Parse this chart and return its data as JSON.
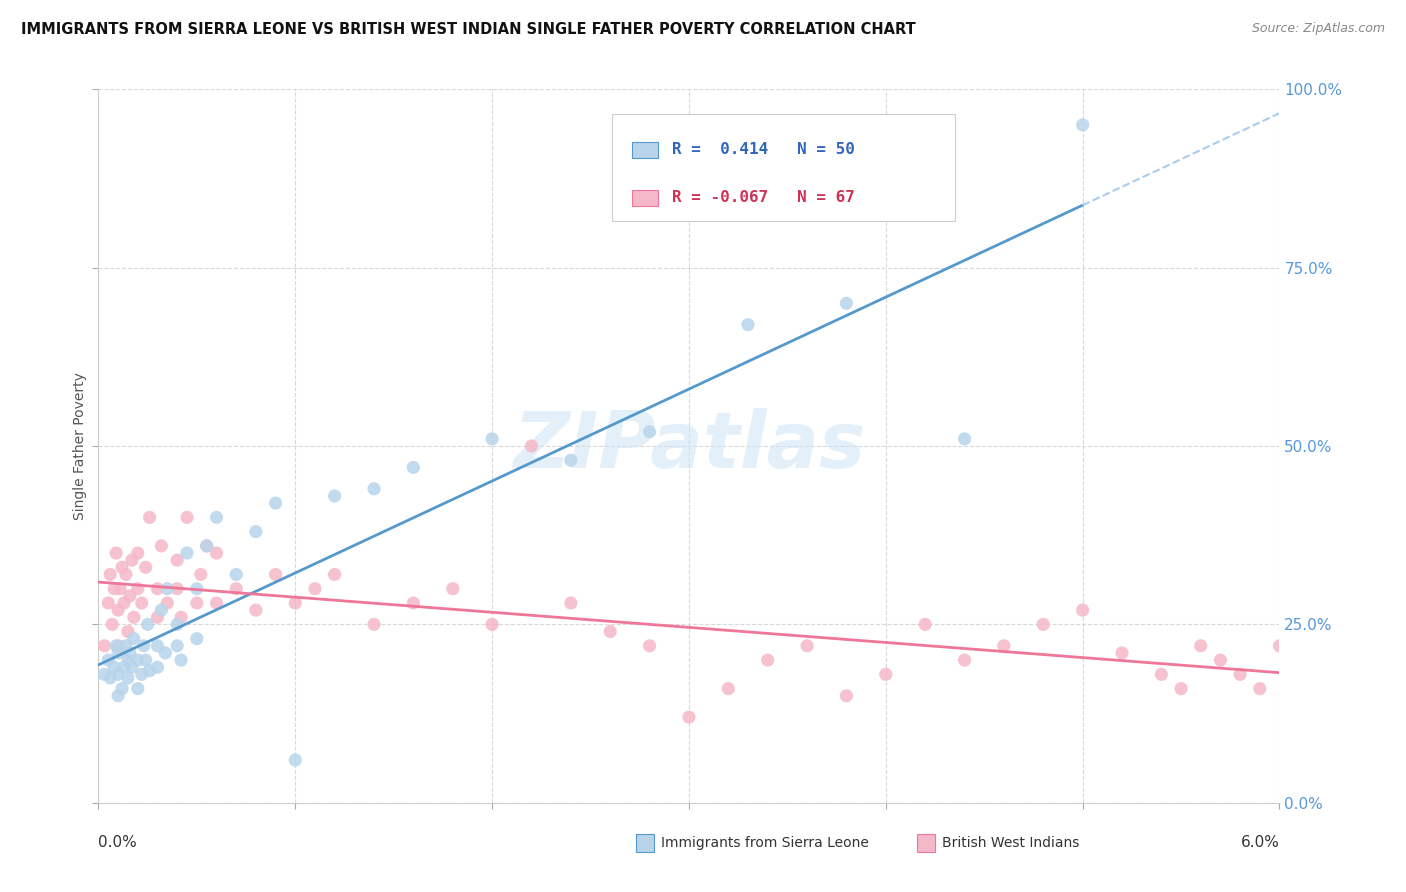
{
  "title": "IMMIGRANTS FROM SIERRA LEONE VS BRITISH WEST INDIAN SINGLE FATHER POVERTY CORRELATION CHART",
  "source": "Source: ZipAtlas.com",
  "ylabel": "Single Father Poverty",
  "xmin": 0.0,
  "xmax": 0.06,
  "ymin": 0.0,
  "ymax": 1.0,
  "R1": 0.414,
  "N1": 50,
  "R2": -0.067,
  "N2": 67,
  "color_sierra": "#b8d4ea",
  "color_bwi": "#f5b8c8",
  "color_line1": "#5599cc",
  "color_line2": "#ee7799",
  "color_line1_dashed": "#aaccee",
  "legend_label1": "Immigrants from Sierra Leone",
  "legend_label2": "British West Indians",
  "sierra_leone_x": [
    0.0003,
    0.0005,
    0.0006,
    0.0008,
    0.0009,
    0.001,
    0.001,
    0.001,
    0.0012,
    0.0013,
    0.0014,
    0.0015,
    0.0015,
    0.0016,
    0.0017,
    0.0018,
    0.002,
    0.002,
    0.0022,
    0.0023,
    0.0024,
    0.0025,
    0.0026,
    0.003,
    0.003,
    0.0032,
    0.0034,
    0.0035,
    0.004,
    0.004,
    0.0042,
    0.0045,
    0.005,
    0.005,
    0.0055,
    0.006,
    0.007,
    0.008,
    0.009,
    0.01,
    0.012,
    0.014,
    0.016,
    0.02,
    0.024,
    0.028,
    0.033,
    0.038,
    0.044,
    0.05
  ],
  "sierra_leone_y": [
    0.18,
    0.2,
    0.175,
    0.19,
    0.22,
    0.15,
    0.18,
    0.21,
    0.16,
    0.19,
    0.22,
    0.175,
    0.2,
    0.21,
    0.19,
    0.23,
    0.16,
    0.2,
    0.18,
    0.22,
    0.2,
    0.25,
    0.185,
    0.19,
    0.22,
    0.27,
    0.21,
    0.3,
    0.22,
    0.25,
    0.2,
    0.35,
    0.23,
    0.3,
    0.36,
    0.4,
    0.32,
    0.38,
    0.42,
    0.06,
    0.43,
    0.44,
    0.47,
    0.51,
    0.48,
    0.52,
    0.67,
    0.7,
    0.51,
    0.95
  ],
  "bwi_x": [
    0.0003,
    0.0005,
    0.0006,
    0.0007,
    0.0008,
    0.0009,
    0.001,
    0.001,
    0.0011,
    0.0012,
    0.0013,
    0.0014,
    0.0015,
    0.0016,
    0.0017,
    0.0018,
    0.002,
    0.002,
    0.0022,
    0.0024,
    0.0026,
    0.003,
    0.003,
    0.0032,
    0.0035,
    0.004,
    0.004,
    0.0042,
    0.0045,
    0.005,
    0.0052,
    0.0055,
    0.006,
    0.006,
    0.007,
    0.008,
    0.009,
    0.01,
    0.011,
    0.012,
    0.014,
    0.016,
    0.018,
    0.02,
    0.022,
    0.024,
    0.026,
    0.028,
    0.03,
    0.032,
    0.034,
    0.036,
    0.038,
    0.04,
    0.042,
    0.044,
    0.046,
    0.048,
    0.05,
    0.052,
    0.054,
    0.055,
    0.056,
    0.057,
    0.058,
    0.059,
    0.06
  ],
  "bwi_y": [
    0.22,
    0.28,
    0.32,
    0.25,
    0.3,
    0.35,
    0.22,
    0.27,
    0.3,
    0.33,
    0.28,
    0.32,
    0.24,
    0.29,
    0.34,
    0.26,
    0.3,
    0.35,
    0.28,
    0.33,
    0.4,
    0.26,
    0.3,
    0.36,
    0.28,
    0.3,
    0.34,
    0.26,
    0.4,
    0.28,
    0.32,
    0.36,
    0.28,
    0.35,
    0.3,
    0.27,
    0.32,
    0.28,
    0.3,
    0.32,
    0.25,
    0.28,
    0.3,
    0.25,
    0.5,
    0.28,
    0.24,
    0.22,
    0.12,
    0.16,
    0.2,
    0.22,
    0.15,
    0.18,
    0.25,
    0.2,
    0.22,
    0.25,
    0.27,
    0.21,
    0.18,
    0.16,
    0.22,
    0.2,
    0.18,
    0.16,
    0.22
  ]
}
